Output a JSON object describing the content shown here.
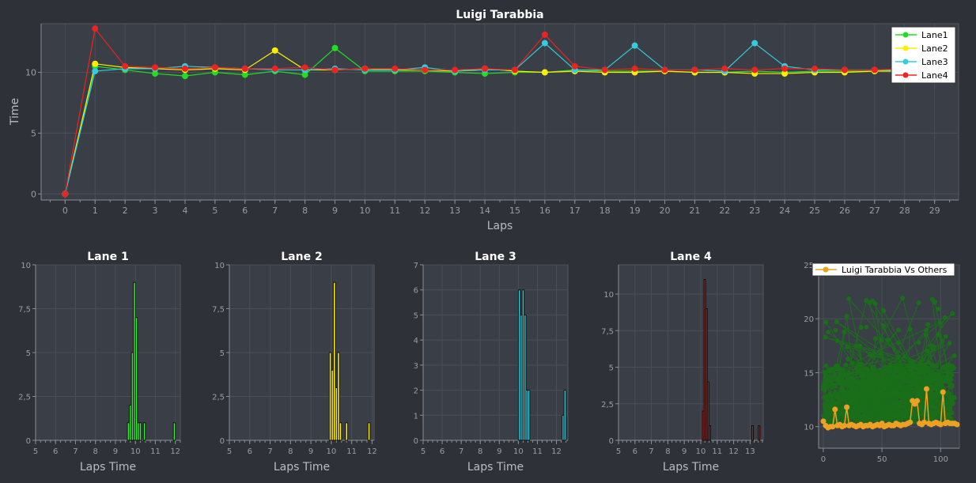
{
  "chart_data": [
    {
      "id": "main",
      "type": "line",
      "title": "Luigi Tarabbia",
      "xlabel": "Laps",
      "ylabel": "Time",
      "xlim": [
        -0.8,
        29.8
      ],
      "ylim": [
        -0.5,
        14.0
      ],
      "xticks": [
        0,
        1,
        2,
        3,
        4,
        5,
        6,
        7,
        8,
        9,
        10,
        11,
        12,
        13,
        14,
        15,
        16,
        17,
        18,
        19,
        20,
        21,
        22,
        23,
        24,
        25,
        26,
        27,
        28,
        29
      ],
      "yticks": [
        0,
        5,
        10
      ],
      "ytick_labels": [
        "0",
        "5",
        "10"
      ],
      "grid": true,
      "legend": "top-right",
      "x": [
        0,
        1,
        2,
        3,
        4,
        5,
        6,
        7,
        8,
        9,
        10,
        11,
        12,
        13,
        14,
        15,
        16,
        17,
        18,
        19,
        20,
        21,
        22,
        23,
        24,
        25,
        26,
        27,
        28
      ],
      "series": [
        {
          "name": "Lane1",
          "color": "#22dd22",
          "values": [
            0,
            10.5,
            10.2,
            9.9,
            9.7,
            10.0,
            9.8,
            10.1,
            9.8,
            12.0,
            10.1,
            10.1,
            10.1,
            10.0,
            9.9,
            10.0,
            10.0,
            10.2,
            10.1,
            10.1,
            10.1,
            10.0,
            10.0,
            10.1,
            10.0,
            10.1,
            10.1,
            10.1,
            10.2
          ]
        },
        {
          "name": "Lane2",
          "color": "#ffee00",
          "values": [
            0,
            10.7,
            10.4,
            10.3,
            10.2,
            10.3,
            10.2,
            11.8,
            10.2,
            10.2,
            10.3,
            10.2,
            10.2,
            10.1,
            10.3,
            10.1,
            10.0,
            10.1,
            10.0,
            10.0,
            10.1,
            10.0,
            10.0,
            9.9,
            9.9,
            10.0,
            10.0,
            10.1,
            10.1
          ]
        },
        {
          "name": "Lane3",
          "color": "#33ccdd",
          "values": [
            0,
            10.1,
            10.3,
            10.3,
            10.5,
            10.4,
            10.3,
            10.2,
            10.2,
            10.3,
            10.2,
            10.2,
            10.4,
            10.1,
            10.2,
            10.2,
            12.4,
            10.2,
            10.2,
            12.2,
            10.2,
            10.2,
            10.1,
            12.4,
            10.5,
            10.2,
            10.2,
            10.2,
            10.2
          ]
        },
        {
          "name": "Lane4",
          "color": "#ee2222",
          "values": [
            0,
            13.6,
            10.5,
            10.4,
            10.3,
            10.4,
            10.3,
            10.3,
            10.4,
            10.2,
            10.3,
            10.3,
            10.2,
            10.2,
            10.3,
            10.2,
            13.1,
            10.5,
            10.2,
            10.3,
            10.2,
            10.2,
            10.3,
            10.2,
            10.3,
            10.3,
            10.2,
            10.2,
            10.3
          ]
        }
      ]
    },
    {
      "id": "lane1",
      "type": "bar",
      "title": "Lane 1",
      "xlabel": "Laps Time",
      "color": "#33ee33",
      "xlim": [
        5,
        12.25
      ],
      "ylim": [
        0,
        10
      ],
      "xticks": [
        5,
        6,
        7,
        8,
        9,
        10,
        11,
        12
      ],
      "yticks": [
        0,
        2.5,
        5,
        7.5,
        10
      ],
      "ytick_labels": [
        "0",
        "2,5",
        "5",
        "7,5",
        "10"
      ],
      "bin_width": 0.1,
      "bins": [
        {
          "x": 9.6,
          "v": 1
        },
        {
          "x": 9.7,
          "v": 2
        },
        {
          "x": 9.8,
          "v": 5
        },
        {
          "x": 9.9,
          "v": 9
        },
        {
          "x": 10.0,
          "v": 7
        },
        {
          "x": 10.1,
          "v": 1
        },
        {
          "x": 10.2,
          "v": 1
        },
        {
          "x": 10.4,
          "v": 1
        },
        {
          "x": 11.9,
          "v": 1
        }
      ]
    },
    {
      "id": "lane2",
      "type": "bar",
      "title": "Lane 2",
      "xlabel": "Laps Time",
      "color": "#ffee00",
      "xlim": [
        5,
        12.1
      ],
      "ylim": [
        0,
        10
      ],
      "xticks": [
        5,
        6,
        7,
        8,
        9,
        10,
        11,
        12
      ],
      "yticks": [
        0,
        2.5,
        5,
        7.5,
        10
      ],
      "ytick_labels": [
        "0",
        "2,5",
        "5",
        "7,5",
        "10"
      ],
      "bin_width": 0.1,
      "bins": [
        {
          "x": 9.9,
          "v": 5
        },
        {
          "x": 10.0,
          "v": 4
        },
        {
          "x": 10.1,
          "v": 9
        },
        {
          "x": 10.2,
          "v": 3
        },
        {
          "x": 10.3,
          "v": 5
        },
        {
          "x": 10.4,
          "v": 1
        },
        {
          "x": 10.7,
          "v": 1
        },
        {
          "x": 11.8,
          "v": 1
        }
      ]
    },
    {
      "id": "lane3",
      "type": "bar",
      "title": "Lane 3",
      "xlabel": "Laps Time",
      "color": "#33ccdd",
      "xlim": [
        5,
        12.6
      ],
      "ylim": [
        0,
        7
      ],
      "xticks": [
        5,
        6,
        7,
        8,
        9,
        10,
        11,
        12
      ],
      "yticks": [
        0,
        1,
        2,
        3,
        4,
        5,
        6,
        7
      ],
      "ytick_labels": [
        "0",
        "1",
        "2",
        "3",
        "4",
        "5",
        "6",
        "7"
      ],
      "bin_width": 0.1,
      "bins": [
        {
          "x": 10.0,
          "v": 6
        },
        {
          "x": 10.1,
          "v": 5
        },
        {
          "x": 10.2,
          "v": 6
        },
        {
          "x": 10.3,
          "v": 5
        },
        {
          "x": 10.4,
          "v": 2
        },
        {
          "x": 10.5,
          "v": 2
        },
        {
          "x": 12.3,
          "v": 1
        },
        {
          "x": 12.4,
          "v": 2
        }
      ]
    },
    {
      "id": "lane4",
      "type": "bar",
      "title": "Lane 4",
      "xlabel": "Laps Time",
      "color": "#cc1111",
      "xlim": [
        5,
        13.8
      ],
      "ylim": [
        0,
        12
      ],
      "xticks": [
        5,
        6,
        7,
        8,
        9,
        10,
        11,
        12,
        13
      ],
      "yticks": [
        0,
        2.5,
        5,
        7.5,
        10
      ],
      "ytick_labels": [
        "0",
        "2,5",
        "5",
        "7,5",
        "10"
      ],
      "bin_width": 0.1,
      "bins": [
        {
          "x": 10.1,
          "v": 2
        },
        {
          "x": 10.2,
          "v": 11
        },
        {
          "x": 10.3,
          "v": 9
        },
        {
          "x": 10.4,
          "v": 4
        },
        {
          "x": 10.5,
          "v": 1
        },
        {
          "x": 13.1,
          "v": 1
        },
        {
          "x": 13.5,
          "v": 1
        }
      ]
    },
    {
      "id": "compare",
      "type": "scatter",
      "title": "",
      "legend": "top",
      "xlim": [
        -4,
        116
      ],
      "ylim": [
        8,
        25
      ],
      "xticks": [
        0,
        50,
        100
      ],
      "yticks": [
        10,
        15,
        20,
        25
      ],
      "ytick_labels": [
        "10",
        "15",
        "20",
        "25"
      ],
      "others_color": "#1a6e1a",
      "series": [
        {
          "name": "Luigi Tarabbia Vs Others",
          "color": "#f0a020",
          "x": [
            0,
            2,
            4,
            6,
            8,
            10,
            12,
            14,
            16,
            18,
            20,
            22,
            24,
            26,
            28,
            30,
            32,
            34,
            36,
            38,
            40,
            42,
            44,
            46,
            48,
            50,
            52,
            54,
            56,
            58,
            60,
            62,
            64,
            66,
            68,
            70,
            72,
            74,
            76,
            78,
            80,
            82,
            84,
            86,
            88,
            90,
            92,
            94,
            96,
            98,
            100,
            102,
            104,
            106,
            108,
            110,
            112,
            114
          ],
          "y": [
            10.5,
            10.1,
            9.9,
            10.0,
            10.0,
            11.6,
            10.1,
            10.2,
            10.0,
            10.1,
            11.8,
            10.1,
            10.2,
            10.1,
            10.0,
            10.1,
            10.2,
            10.0,
            10.1,
            10.1,
            10.2,
            10.0,
            10.1,
            10.2,
            10.1,
            10.3,
            10.0,
            10.1,
            10.2,
            10.1,
            10.1,
            10.3,
            10.2,
            10.1,
            10.2,
            10.2,
            10.3,
            10.4,
            12.4,
            12.1,
            12.4,
            10.3,
            10.2,
            10.4,
            13.5,
            10.3,
            10.2,
            10.3,
            10.4,
            10.3,
            10.2,
            13.2,
            10.3,
            10.4,
            10.3,
            10.3,
            10.3,
            10.2
          ]
        }
      ]
    }
  ]
}
